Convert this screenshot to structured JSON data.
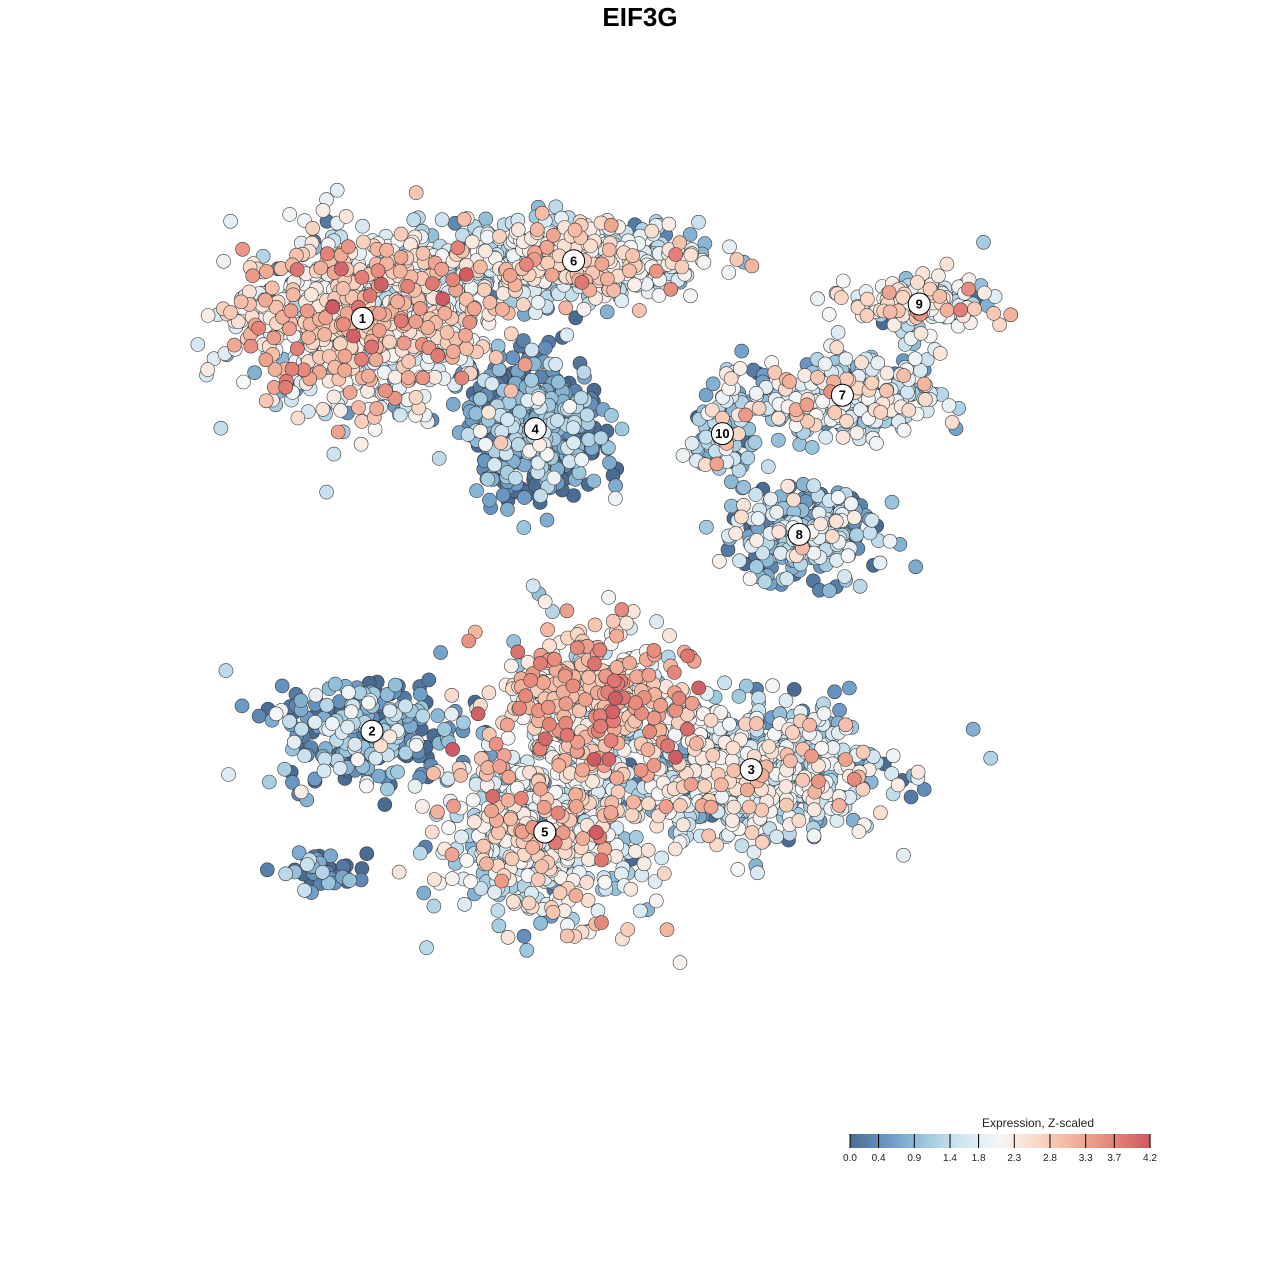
{
  "chart_data": {
    "type": "scatter",
    "title": "EIF3G",
    "xlabel": "",
    "ylabel": "",
    "legend": {
      "title": "Expression, Z-scaled",
      "placement": "bottom-right",
      "ticks": [
        "0.0",
        "0.4",
        "0.9",
        "1.4",
        "1.8",
        "2.3",
        "2.8",
        "3.3",
        "3.7",
        "4.2"
      ],
      "range": [
        0.0,
        4.2
      ],
      "colors": [
        "#4a6b92",
        "#6a98c4",
        "#9ec8de",
        "#d3e6f1",
        "#f7f7f7",
        "#f9d9c8",
        "#f2b09a",
        "#e5857a",
        "#cf5a63"
      ]
    },
    "clusters": [
      {
        "label": "1",
        "center": [
          -62,
          67
        ],
        "spread": [
          13,
          9
        ],
        "mean": 2.1,
        "count": 900
      },
      {
        "label": "6",
        "center": [
          -18,
          79
        ],
        "spread": [
          13,
          4
        ],
        "mean": 1.7,
        "count": 560
      },
      {
        "label": "4",
        "center": [
          -26,
          44
        ],
        "spread": [
          7,
          7
        ],
        "mean": 0.35,
        "count": 520
      },
      {
        "label": "10",
        "center": [
          13,
          43
        ],
        "spread": [
          3,
          4
        ],
        "mean": 1.1,
        "count": 110
      },
      {
        "label": "9",
        "center": [
          54,
          70
        ],
        "spread": [
          7,
          3
        ],
        "mean": 1.8,
        "count": 180
      },
      {
        "label": "7",
        "center": [
          38,
          51
        ],
        "spread": [
          10,
          4
        ],
        "mean": 1.5,
        "count": 300
      },
      {
        "label": "8",
        "center": [
          29,
          22
        ],
        "spread": [
          8,
          5
        ],
        "mean": 0.9,
        "count": 260
      },
      {
        "label": "2",
        "center": [
          -60,
          -19
        ],
        "spread": [
          9,
          6
        ],
        "mean": 0.7,
        "count": 260
      },
      {
        "label": "3",
        "center": [
          19,
          -27
        ],
        "spread": [
          14,
          7
        ],
        "mean": 1.5,
        "count": 640
      },
      {
        "label": "5",
        "center": [
          -24,
          -40
        ],
        "spread": [
          11,
          9
        ],
        "mean": 1.9,
        "count": 560
      },
      {
        "label": "",
        "center": [
          -14,
          -13
        ],
        "spread": [
          10,
          8
        ],
        "mean": 2.6,
        "count": 440
      },
      {
        "label": "",
        "center": [
          -71,
          -48
        ],
        "spread": [
          4,
          2
        ],
        "mean": 0.3,
        "count": 45
      }
    ],
    "cluster_labels": [
      "1",
      "6",
      "4",
      "10",
      "9",
      "7",
      "8",
      "2",
      "3",
      "5"
    ],
    "xlim": [
      -100,
      100
    ],
    "ylim": [
      -100,
      100
    ]
  }
}
